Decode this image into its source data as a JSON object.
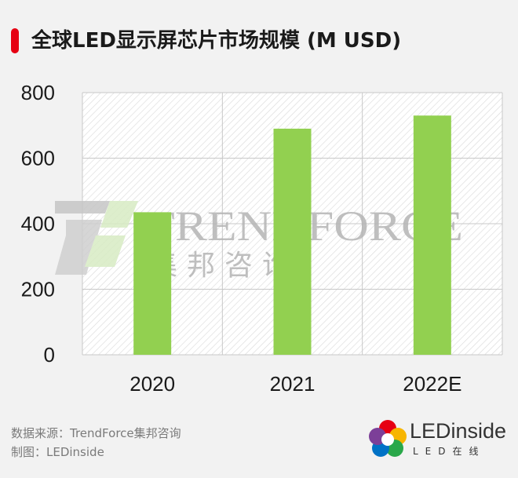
{
  "header": {
    "title": "全球LED显示屏芯片市场规模 (M USD)"
  },
  "colors": {
    "accent": "#e60012",
    "bar": "#92d050",
    "grid": "#c8c8c8",
    "plot_bg": "#ffffff"
  },
  "watermark": {
    "brand": "TRENDFORCE",
    "brand_cn": "集邦咨询"
  },
  "footer": {
    "source": "数据来源：TrendForce集邦咨询",
    "maker": "制图：LEDinside"
  },
  "logo": {
    "name": "LEDinside",
    "sub": "LED在线",
    "icon": "ledinside-flower-icon"
  },
  "chart_data": {
    "type": "bar",
    "title": "全球LED显示屏芯片市场规模 (M USD)",
    "xlabel": "",
    "ylabel": "",
    "categories": [
      "2020",
      "2021",
      "2022E"
    ],
    "values": [
      435,
      690,
      730
    ],
    "ylim": [
      0,
      800
    ],
    "yticks": [
      "0",
      "200",
      "400",
      "600",
      "800"
    ],
    "grid": true,
    "legend": "none"
  }
}
